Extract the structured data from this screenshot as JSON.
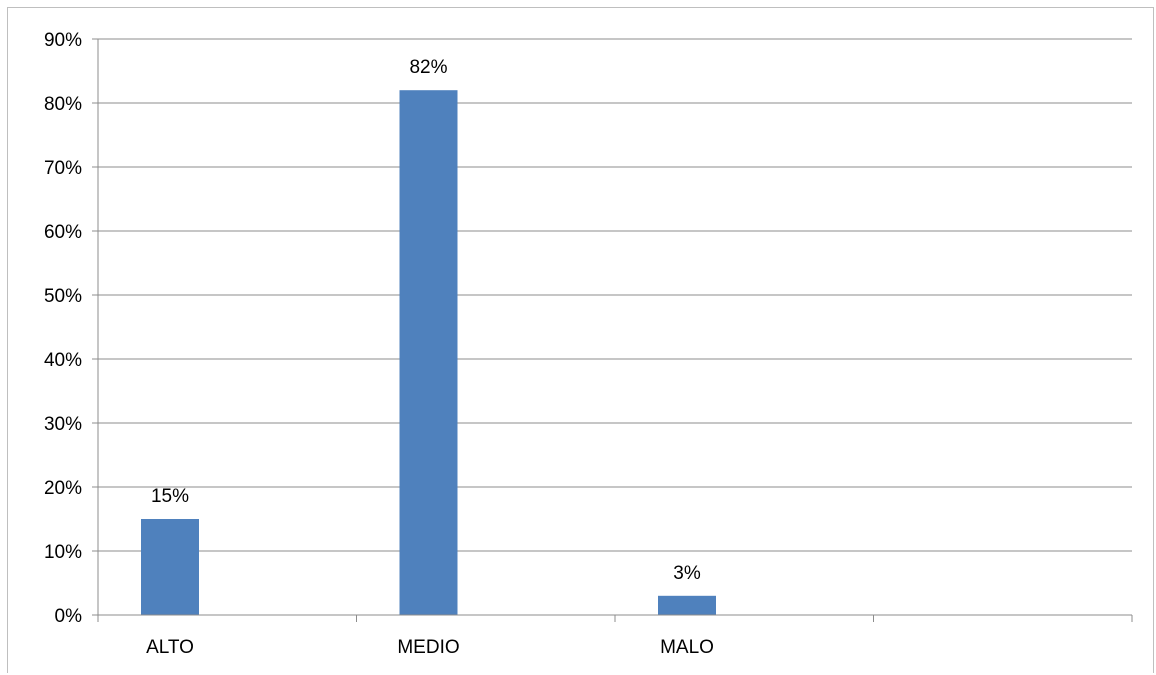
{
  "chart_data": {
    "type": "bar",
    "categories": [
      "ALTO",
      "MEDIO",
      "MALO",
      ""
    ],
    "values": [
      15,
      82,
      3,
      null
    ],
    "data_labels": [
      "15%",
      "82%",
      "3%",
      ""
    ],
    "y_ticks": [
      "0%",
      "10%",
      "20%",
      "30%",
      "40%",
      "50%",
      "60%",
      "70%",
      "80%",
      "90%"
    ],
    "ylim": [
      0,
      90
    ],
    "y_unit": "%",
    "grid": true,
    "legend": "none",
    "bar_color": "#4f81bd"
  }
}
